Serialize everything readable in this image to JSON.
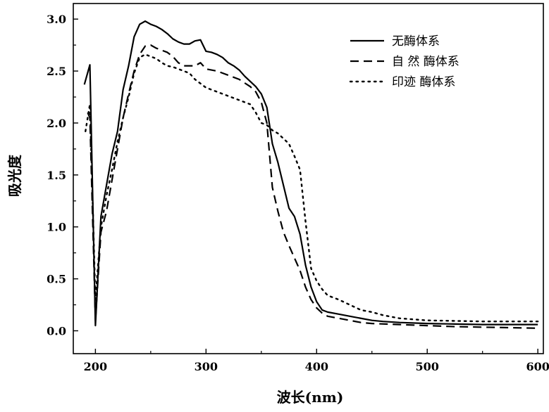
{
  "chart_data": {
    "type": "line",
    "xlabel": "波长(nm)",
    "ylabel": "吸光度",
    "xlim": [
      180,
      605
    ],
    "ylim": [
      -0.22,
      3.15
    ],
    "x_ticks": [
      200,
      300,
      400,
      500,
      600
    ],
    "y_ticks": [
      0.0,
      0.5,
      1.0,
      1.5,
      2.0,
      2.5,
      3.0
    ],
    "x_tick_labels": [
      "200",
      "300",
      "400",
      "500",
      "600"
    ],
    "y_tick_labels": [
      "0.0",
      "0.5",
      "1.0",
      "1.5",
      "2.0",
      "2.5",
      "3.0"
    ],
    "grid": false,
    "legend_position": "top-right",
    "series": [
      {
        "name": "无酶体系",
        "style": "solid",
        "color": "#000000",
        "points": [
          [
            190,
            2.37
          ],
          [
            195,
            2.56
          ],
          [
            200,
            0.05
          ],
          [
            205,
            1.1
          ],
          [
            210,
            1.4
          ],
          [
            215,
            1.7
          ],
          [
            220,
            1.92
          ],
          [
            225,
            2.32
          ],
          [
            230,
            2.55
          ],
          [
            235,
            2.83
          ],
          [
            240,
            2.95
          ],
          [
            245,
            2.98
          ],
          [
            250,
            2.95
          ],
          [
            255,
            2.93
          ],
          [
            260,
            2.9
          ],
          [
            265,
            2.86
          ],
          [
            270,
            2.81
          ],
          [
            275,
            2.78
          ],
          [
            280,
            2.76
          ],
          [
            285,
            2.76
          ],
          [
            290,
            2.79
          ],
          [
            295,
            2.8
          ],
          [
            300,
            2.69
          ],
          [
            305,
            2.68
          ],
          [
            310,
            2.66
          ],
          [
            315,
            2.63
          ],
          [
            320,
            2.58
          ],
          [
            325,
            2.55
          ],
          [
            330,
            2.51
          ],
          [
            335,
            2.45
          ],
          [
            340,
            2.4
          ],
          [
            345,
            2.35
          ],
          [
            350,
            2.28
          ],
          [
            355,
            2.15
          ],
          [
            360,
            1.8
          ],
          [
            365,
            1.62
          ],
          [
            370,
            1.4
          ],
          [
            375,
            1.18
          ],
          [
            380,
            1.1
          ],
          [
            385,
            0.93
          ],
          [
            390,
            0.63
          ],
          [
            395,
            0.42
          ],
          [
            400,
            0.28
          ],
          [
            405,
            0.2
          ],
          [
            410,
            0.18
          ],
          [
            420,
            0.16
          ],
          [
            430,
            0.14
          ],
          [
            440,
            0.12
          ],
          [
            450,
            0.1
          ],
          [
            460,
            0.09
          ],
          [
            475,
            0.08
          ],
          [
            500,
            0.07
          ],
          [
            525,
            0.065
          ],
          [
            550,
            0.06
          ],
          [
            575,
            0.06
          ],
          [
            600,
            0.06
          ]
        ]
      },
      {
        "name": "自 然 酶体系",
        "style": "dashed",
        "color": "#000000",
        "points": [
          [
            193,
            2.1
          ],
          [
            195,
            2.05
          ],
          [
            200,
            0.1
          ],
          [
            205,
            0.95
          ],
          [
            210,
            1.15
          ],
          [
            215,
            1.45
          ],
          [
            220,
            1.75
          ],
          [
            225,
            2.05
          ],
          [
            230,
            2.28
          ],
          [
            235,
            2.5
          ],
          [
            240,
            2.66
          ],
          [
            245,
            2.74
          ],
          [
            250,
            2.75
          ],
          [
            255,
            2.72
          ],
          [
            260,
            2.7
          ],
          [
            265,
            2.68
          ],
          [
            270,
            2.64
          ],
          [
            275,
            2.58
          ],
          [
            280,
            2.55
          ],
          [
            285,
            2.55
          ],
          [
            290,
            2.55
          ],
          [
            295,
            2.58
          ],
          [
            300,
            2.52
          ],
          [
            310,
            2.5
          ],
          [
            320,
            2.46
          ],
          [
            330,
            2.42
          ],
          [
            340,
            2.35
          ],
          [
            345,
            2.3
          ],
          [
            350,
            2.2
          ],
          [
            355,
            2.0
          ],
          [
            360,
            1.38
          ],
          [
            365,
            1.15
          ],
          [
            370,
            0.95
          ],
          [
            375,
            0.82
          ],
          [
            380,
            0.7
          ],
          [
            385,
            0.58
          ],
          [
            390,
            0.42
          ],
          [
            395,
            0.3
          ],
          [
            400,
            0.22
          ],
          [
            405,
            0.17
          ],
          [
            410,
            0.14
          ],
          [
            420,
            0.12
          ],
          [
            430,
            0.1
          ],
          [
            440,
            0.08
          ],
          [
            450,
            0.07
          ],
          [
            475,
            0.06
          ],
          [
            500,
            0.05
          ],
          [
            525,
            0.04
          ],
          [
            550,
            0.035
          ],
          [
            575,
            0.03
          ],
          [
            600,
            0.025
          ]
        ]
      },
      {
        "name": "印迹 酶体系",
        "style": "dotted",
        "color": "#000000",
        "points": [
          [
            191,
            1.92
          ],
          [
            195,
            2.18
          ],
          [
            200,
            0.3
          ],
          [
            205,
            1.0
          ],
          [
            210,
            1.3
          ],
          [
            215,
            1.55
          ],
          [
            220,
            1.82
          ],
          [
            225,
            2.05
          ],
          [
            230,
            2.25
          ],
          [
            235,
            2.48
          ],
          [
            240,
            2.63
          ],
          [
            245,
            2.66
          ],
          [
            250,
            2.64
          ],
          [
            255,
            2.62
          ],
          [
            260,
            2.58
          ],
          [
            265,
            2.55
          ],
          [
            270,
            2.54
          ],
          [
            275,
            2.52
          ],
          [
            280,
            2.5
          ],
          [
            285,
            2.48
          ],
          [
            290,
            2.42
          ],
          [
            295,
            2.38
          ],
          [
            300,
            2.34
          ],
          [
            310,
            2.3
          ],
          [
            320,
            2.26
          ],
          [
            330,
            2.22
          ],
          [
            340,
            2.18
          ],
          [
            345,
            2.1
          ],
          [
            350,
            2.0
          ],
          [
            355,
            1.98
          ],
          [
            360,
            1.93
          ],
          [
            365,
            1.9
          ],
          [
            370,
            1.85
          ],
          [
            375,
            1.8
          ],
          [
            380,
            1.68
          ],
          [
            385,
            1.55
          ],
          [
            390,
            1.05
          ],
          [
            395,
            0.6
          ],
          [
            400,
            0.48
          ],
          [
            405,
            0.4
          ],
          [
            410,
            0.34
          ],
          [
            420,
            0.3
          ],
          [
            430,
            0.25
          ],
          [
            440,
            0.2
          ],
          [
            450,
            0.18
          ],
          [
            460,
            0.15
          ],
          [
            475,
            0.12
          ],
          [
            500,
            0.1
          ],
          [
            525,
            0.095
          ],
          [
            550,
            0.09
          ],
          [
            575,
            0.09
          ],
          [
            600,
            0.09
          ]
        ]
      }
    ]
  }
}
